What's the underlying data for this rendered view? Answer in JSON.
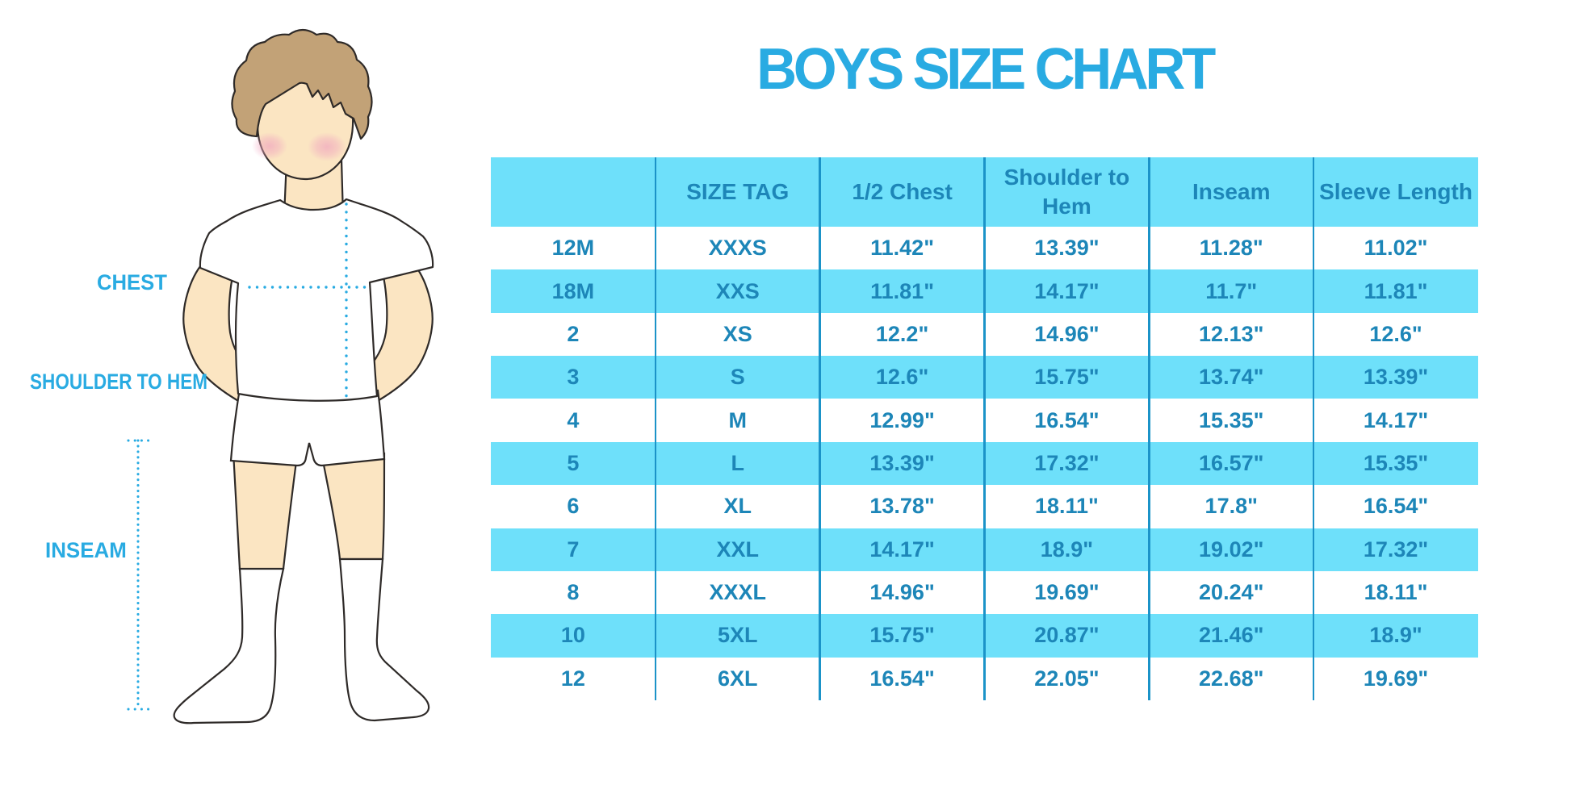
{
  "title": "BOYS SIZE CHART",
  "figure": {
    "description": "outline illustration of a boy in white t-shirt, shorts and knee socks with dotted measurement guides",
    "labels": {
      "chest": "CHEST",
      "shoulder_to_hem": "SHOULDER TO HEM",
      "inseam": "INSEAM"
    }
  },
  "chart_data": {
    "type": "table",
    "title": "BOYS SIZE CHART",
    "columns": [
      "",
      "SIZE TAG",
      "1/2 Chest",
      "Shoulder to Hem",
      "Inseam",
      "Sleeve Length"
    ],
    "rows": [
      [
        "12M",
        "XXXS",
        "11.42\"",
        "13.39\"",
        "11.28\"",
        "11.02\""
      ],
      [
        "18M",
        "XXS",
        "11.81\"",
        "14.17\"",
        "11.7\"",
        "11.81\""
      ],
      [
        "2",
        "XS",
        "12.2\"",
        "14.96\"",
        "12.13\"",
        "12.6\""
      ],
      [
        "3",
        "S",
        "12.6\"",
        "15.75\"",
        "13.74\"",
        "13.39\""
      ],
      [
        "4",
        "M",
        "12.99\"",
        "16.54\"",
        "15.35\"",
        "14.17\""
      ],
      [
        "5",
        "L",
        "13.39\"",
        "17.32\"",
        "16.57\"",
        "15.35\""
      ],
      [
        "6",
        "XL",
        "13.78\"",
        "18.11\"",
        "17.8\"",
        "16.54\""
      ],
      [
        "7",
        "XXL",
        "14.17\"",
        "18.9\"",
        "19.02\"",
        "17.32\""
      ],
      [
        "8",
        "XXXL",
        "14.96\"",
        "19.69\"",
        "20.24\"",
        "18.11\""
      ],
      [
        "10",
        "5XL",
        "15.75\"",
        "20.87\"",
        "21.46\"",
        "18.9\""
      ],
      [
        "12",
        "6XL",
        "16.54\"",
        "22.05\"",
        "22.68\"",
        "19.69\""
      ]
    ],
    "row_striping": "header and alternate rows (2nd, 4th, ...) filled cyan, others white",
    "grid": "vertical column separators only, no horizontal lines, no outer border",
    "legend_position": "none"
  },
  "colors": {
    "accent_blue": "#29ABE2",
    "stripe_cyan": "#6EE0FA",
    "table_text": "#1D86B8",
    "grid_line": "#1B93C8",
    "hair": "#C2A277",
    "skin": "#FBE5C2",
    "blush": "#F2A0B9",
    "outline_dark": "#2E2A28",
    "background": "#FFFFFF"
  }
}
